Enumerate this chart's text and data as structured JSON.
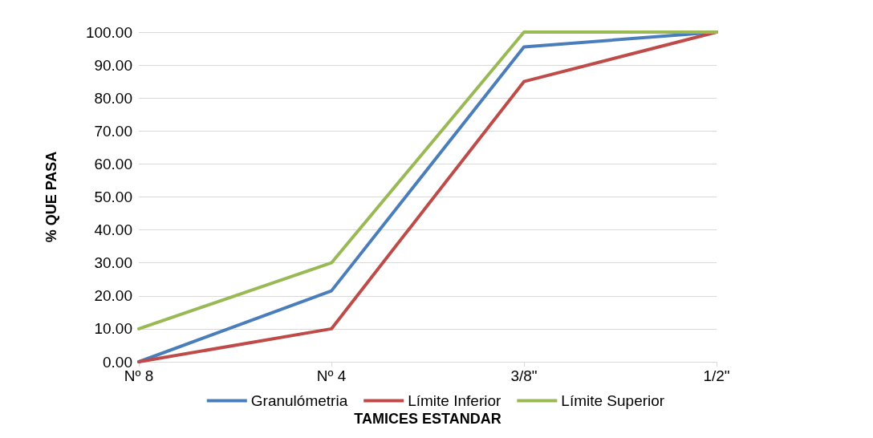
{
  "chart_data": {
    "type": "line",
    "xlabel": "TAMICES ESTANDAR",
    "ylabel": "% QUE PASA",
    "categories": [
      "Nº 8",
      "Nº 4",
      "3/8\"",
      "1/2\""
    ],
    "series": [
      {
        "name": "Granulómetria",
        "color": "#4a7ebb",
        "values": [
          0,
          21.5,
          95.5,
          100
        ]
      },
      {
        "name": "Límite Inferior",
        "color": "#be4b48",
        "values": [
          0,
          10,
          85,
          100
        ]
      },
      {
        "name": "Límite Superior",
        "color": "#98b954",
        "values": [
          10,
          30,
          100,
          100
        ]
      }
    ],
    "ylim": [
      0,
      100
    ],
    "yticks": [
      {
        "value": 0,
        "label": "0.00"
      },
      {
        "value": 10,
        "label": "10.00"
      },
      {
        "value": 20,
        "label": "20.00"
      },
      {
        "value": 30,
        "label": "30.00"
      },
      {
        "value": 40,
        "label": "40.00"
      },
      {
        "value": 50,
        "label": "50.00"
      },
      {
        "value": 60,
        "label": "60.00"
      },
      {
        "value": 70,
        "label": "70.00"
      },
      {
        "value": 80,
        "label": "80.00"
      },
      {
        "value": 90,
        "label": "90.00"
      },
      {
        "value": 100,
        "label": "100.00"
      }
    ],
    "grid": "y",
    "legend": "bottom",
    "marker": "none",
    "line_style": "solid"
  }
}
